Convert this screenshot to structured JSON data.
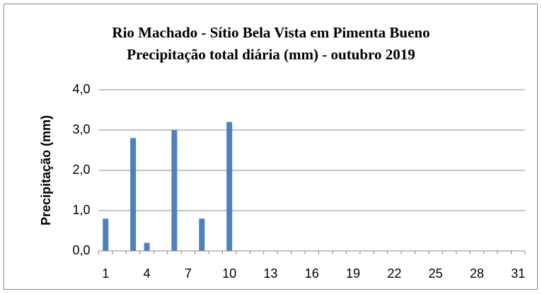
{
  "chart_data": {
    "type": "bar",
    "title": "Rio Machado - Sítio Bela Vista em Pimenta Bueno",
    "subtitle": "Precipitação total diária (mm) - outubro   2019",
    "y_label": "Precipitação (mm)",
    "categories": [
      "1",
      null,
      null,
      "4",
      null,
      null,
      "7",
      null,
      null,
      "10",
      null,
      null,
      "13",
      null,
      null,
      "16",
      null,
      null,
      "19",
      null,
      null,
      "22",
      null,
      null,
      "25",
      null,
      null,
      "28",
      null,
      null,
      "31"
    ],
    "values": [
      0.8,
      0,
      2.8,
      0.2,
      0,
      3.0,
      0,
      0.8,
      0,
      3.2,
      0,
      0,
      0,
      0,
      0,
      0,
      0,
      0,
      0,
      0,
      0,
      0,
      0,
      0,
      0,
      0,
      0,
      0,
      0,
      0,
      0
    ],
    "color": "#4f81bd",
    "ylim": [
      0,
      4
    ],
    "yticks": [
      {
        "value": 0,
        "label": "0,0"
      },
      {
        "value": 1,
        "label": "1,0"
      },
      {
        "value": 2,
        "label": "2,0"
      },
      {
        "value": 3,
        "label": "3,0"
      },
      {
        "value": 4,
        "label": "4,0"
      }
    ],
    "grid": true
  }
}
